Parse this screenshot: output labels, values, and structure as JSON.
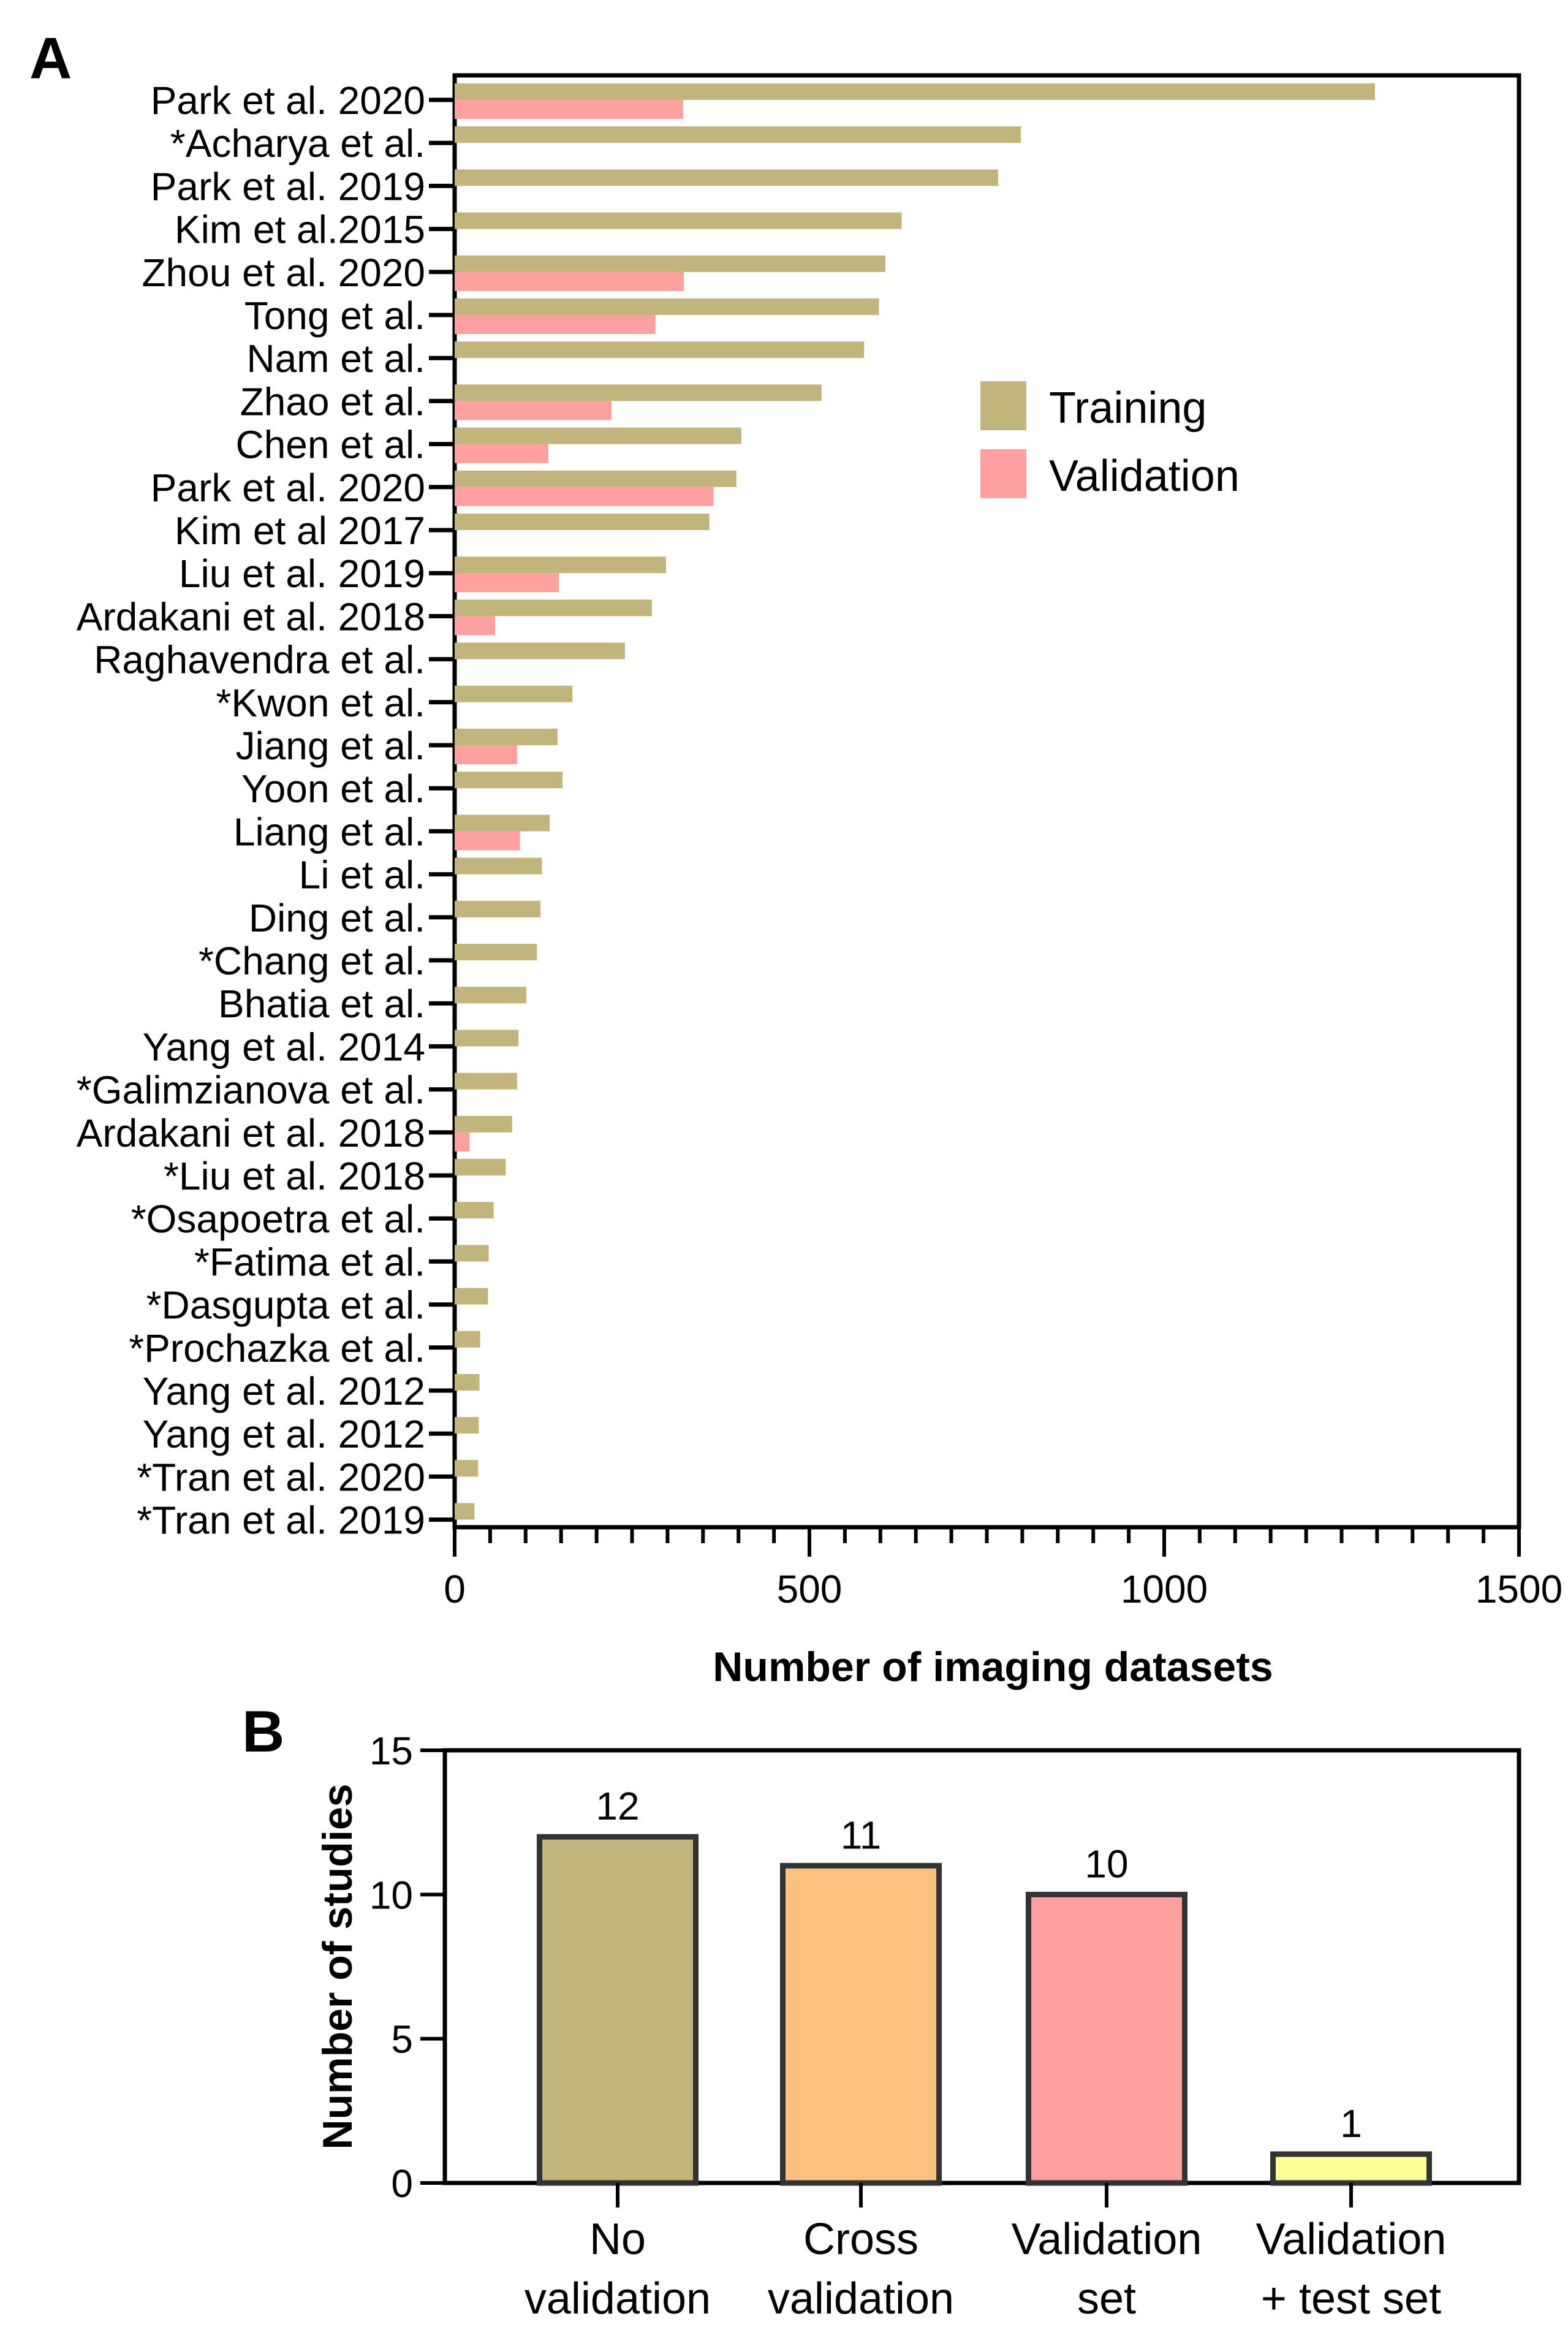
{
  "chart_data": [
    {
      "panel": "A",
      "type": "bar",
      "orientation": "horizontal",
      "xlabel": "Number of imaging datasets",
      "xlim": [
        0,
        1500
      ],
      "xticks": [
        "0",
        "500",
        "1000",
        "1500"
      ],
      "legend": {
        "position": "top-right",
        "entries": [
          "Training",
          "Validation"
        ]
      },
      "colors": {
        "Training": "#C2B57C",
        "Validation": "#FFA0A0"
      },
      "categories": [
        "Park et al. 2020",
        "*Acharya et al.",
        "Park et al. 2019",
        "Kim et al.2015",
        "Zhou et al. 2020",
        "Tong et al.",
        "Nam et al.",
        "Zhao et al.",
        "Chen et al.",
        "Park et al. 2020",
        "Kim et al 2017",
        "Liu et al. 2019",
        "Ardakani et al. 2018",
        "Raghavendra et al.",
        "*Kwon et al.",
        "Jiang et al.",
        "Yoon et al.",
        "Liang et al.",
        "Li et al.",
        "Ding et al.",
        "*Chang et al.",
        "Bhatia et al.",
        "Yang et al. 2014",
        "*Galimzianova et al.",
        "Ardakani et al. 2018",
        "*Liu et al. 2018",
        "*Osapoetra et al.",
        "*Fatima et al.",
        "*Dasgupta et al.",
        "*Prochazka et al.",
        "Yang et al. 2012",
        "Yang et al. 2012",
        "*Tran et al. 2020",
        "*Tran et al. 2019"
      ],
      "series": [
        {
          "name": "Training",
          "values": [
            1297,
            798,
            766,
            630,
            607,
            598,
            577,
            517,
            404,
            397,
            359,
            298,
            278,
            240,
            166,
            145,
            152,
            134,
            123,
            121,
            116,
            101,
            90,
            88,
            81,
            72,
            55,
            48,
            47,
            36,
            35,
            34,
            33,
            28
          ]
        },
        {
          "name": "Validation",
          "values": [
            322,
            0,
            0,
            0,
            323,
            283,
            0,
            221,
            132,
            365,
            0,
            147,
            57,
            0,
            0,
            88,
            0,
            92,
            0,
            0,
            0,
            0,
            0,
            0,
            21,
            0,
            0,
            0,
            0,
            0,
            0,
            0,
            0,
            0
          ]
        }
      ]
    },
    {
      "panel": "B",
      "type": "bar",
      "orientation": "vertical",
      "ylabel": "Number of studies",
      "ylim": [
        0,
        15
      ],
      "yticks": [
        "0",
        "5",
        "10",
        "15"
      ],
      "categories": [
        [
          "No",
          "validation"
        ],
        [
          "Cross",
          "validation"
        ],
        [
          "Validation",
          "set"
        ],
        [
          "Validation",
          "+ test set"
        ]
      ],
      "values": [
        12,
        11,
        10,
        1
      ],
      "value_labels": [
        "12",
        "11",
        "10",
        "1"
      ],
      "colors": [
        "#C2B57C",
        "#FFC080",
        "#FFA0A0",
        "#FFFF99"
      ]
    }
  ]
}
